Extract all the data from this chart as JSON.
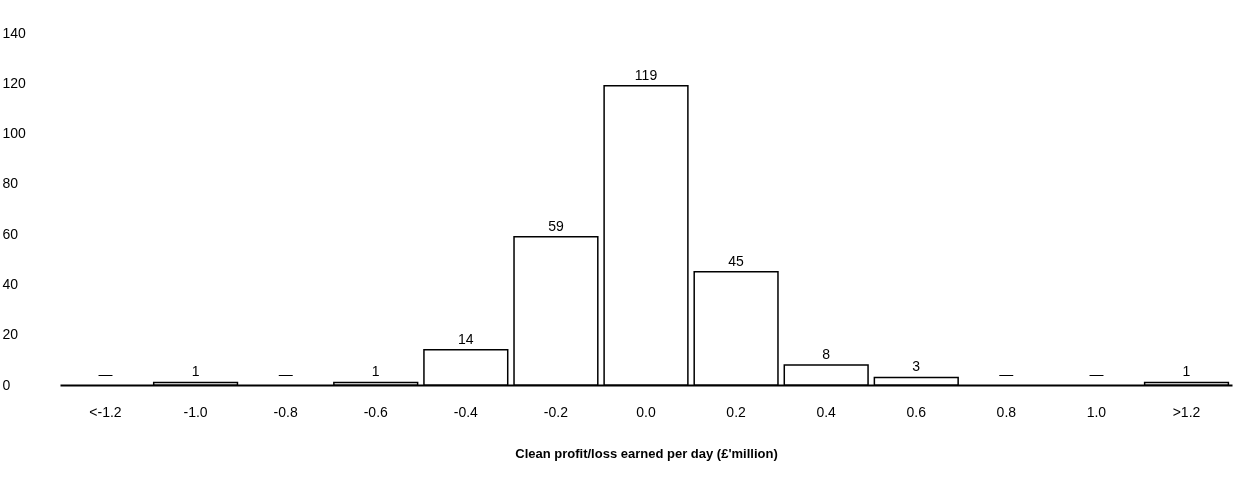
{
  "chart_data": {
    "type": "bar",
    "xlabel": "Clean profit/loss earned per day (£'million)",
    "categories": [
      "<-1.2",
      "-1.0",
      "-0.8",
      "-0.6",
      "-0.4",
      "-0.2",
      "0.0",
      "0.2",
      "0.4",
      "0.6",
      "0.8",
      "1.0",
      ">1.2"
    ],
    "values": [
      0,
      1,
      0,
      1,
      14,
      59,
      119,
      45,
      8,
      3,
      0,
      0,
      1
    ],
    "value_labels": [
      "—",
      "1",
      "—",
      "1",
      "14",
      "59",
      "119",
      "45",
      "8",
      "3",
      "—",
      "—",
      "1"
    ],
    "color": "#ffffff",
    "ylim": [
      0,
      140
    ],
    "yticks": [
      0,
      20,
      40,
      60,
      80,
      100,
      120,
      140
    ],
    "grid": false
  }
}
